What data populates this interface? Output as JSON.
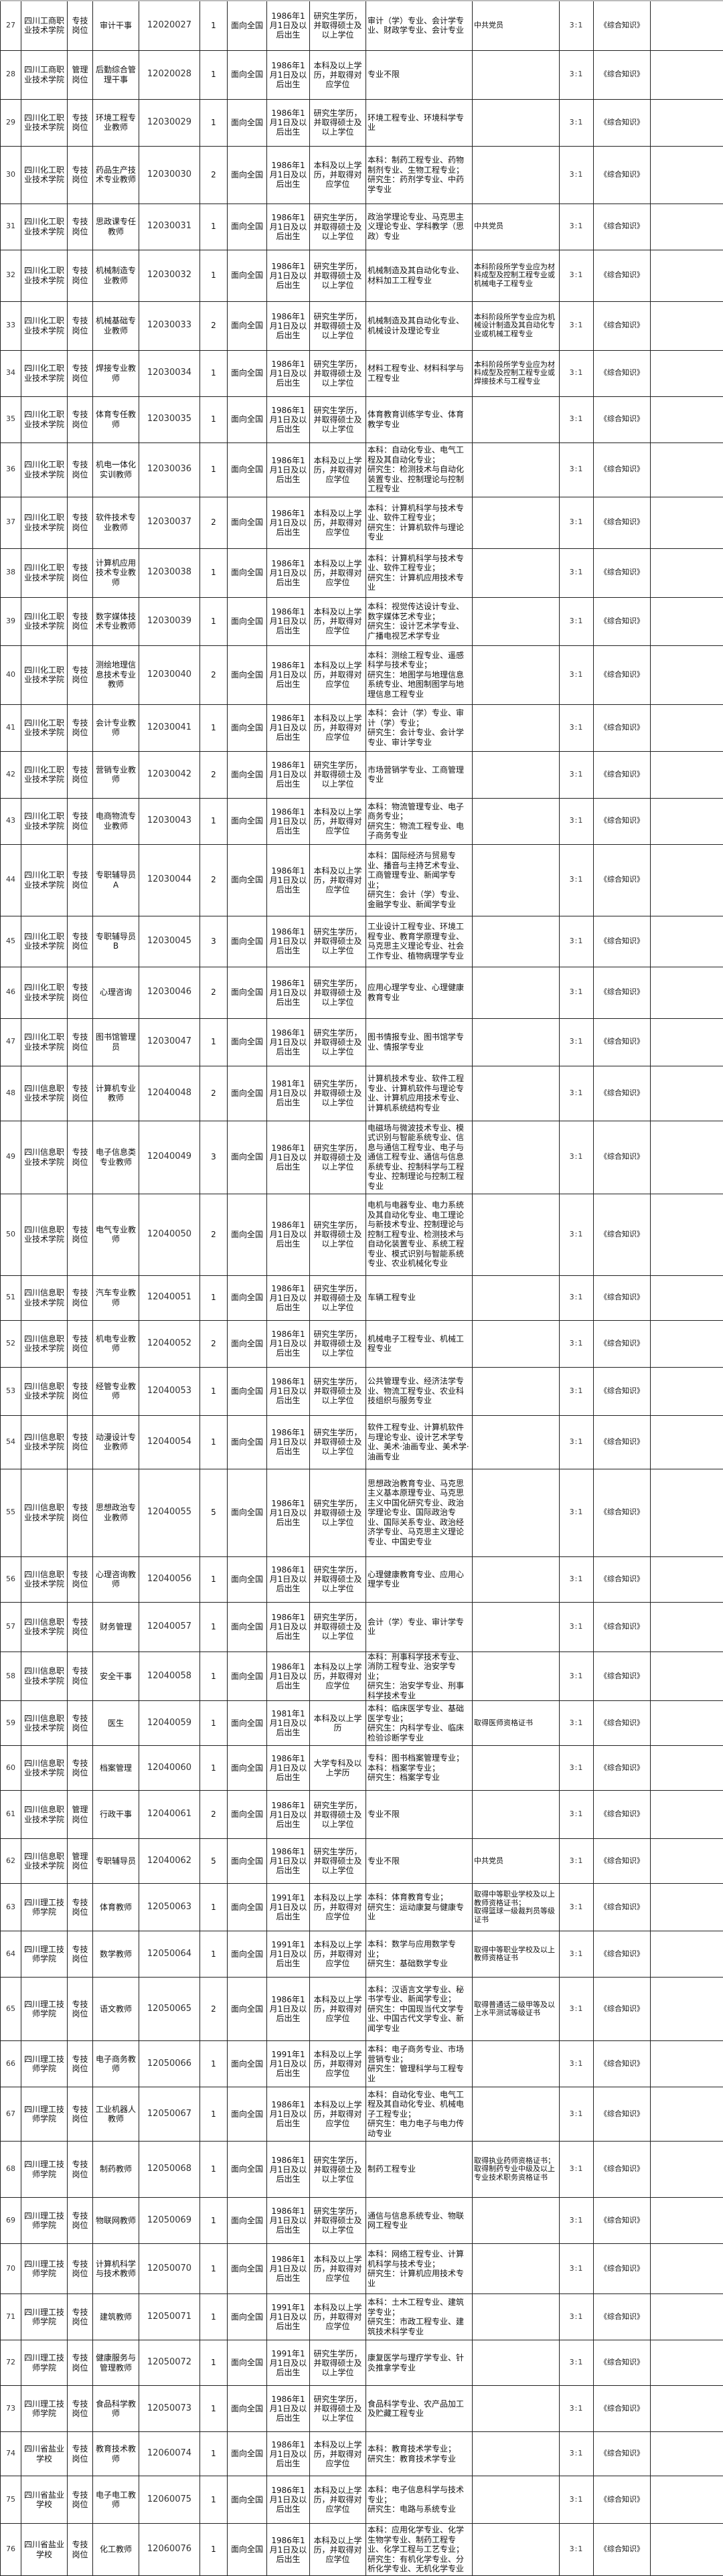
{
  "rows": [
    {
      "no": "27",
      "unit": "四川工商职业技术学院",
      "type": "专技岗位",
      "post": "审计干事",
      "code": "12020027",
      "count": "1",
      "scope": "面向全国",
      "age": "1986年1月1日及以后出生",
      "edu": "研究生学历，并取得硕士及以上学位",
      "major": "审计（学）专业、会计学专业、财政学专业、会计专业",
      "other": "中共党员",
      "ratio": "3:1",
      "exam": "《综合知识》"
    },
    {
      "no": "28",
      "unit": "四川工商职业技术学院",
      "type": "管理岗位",
      "post": "后勤综合管理干事",
      "code": "12020028",
      "count": "1",
      "scope": "面向全国",
      "age": "1986年1月1日及以后出生",
      "edu": "本科及以上学历，并取得对应学位",
      "major": "专业不限",
      "other": "",
      "ratio": "3:1",
      "exam": "《综合知识》"
    },
    {
      "no": "29",
      "unit": "四川化工职业技术学院",
      "type": "专技岗位",
      "post": "环境工程专业教师",
      "code": "12030029",
      "count": "1",
      "scope": "面向全国",
      "age": "1986年1月1日及以后出生",
      "edu": "研究生学历，并取得硕士及以上学位",
      "major": "环境工程专业、环境科学专业",
      "other": "",
      "ratio": "3:1",
      "exam": "《综合知识》"
    },
    {
      "no": "30",
      "unit": "四川化工职业技术学院",
      "type": "专技岗位",
      "post": "药品生产技术专业教师",
      "code": "12030030",
      "count": "2",
      "scope": "面向全国",
      "age": "1986年1月1日及以后出生",
      "edu": "本科及以上学历，并取得对应学位",
      "major": "本科：制药工程专业、药物制剂专业、生物工程专业；\n研究生：药剂学专业、中药学专业",
      "other": "",
      "ratio": "3:1",
      "exam": "《综合知识》"
    },
    {
      "no": "31",
      "unit": "四川化工职业技术学院",
      "type": "专技岗位",
      "post": "思政课专任教师",
      "code": "12030031",
      "count": "1",
      "scope": "面向全国",
      "age": "1986年1月1日及以后出生",
      "edu": "研究生学历，并取得硕士及以上学位",
      "major": "政治学理论专业、马克思主义理论专业、学科教学（思政）专业",
      "other": "中共党员",
      "ratio": "3:1",
      "exam": "《综合知识》"
    },
    {
      "no": "32",
      "unit": "四川化工职业技术学院",
      "type": "专技岗位",
      "post": "机械制造专业教师",
      "code": "12030032",
      "count": "1",
      "scope": "面向全国",
      "age": "1986年1月1日及以后出生",
      "edu": "研究生学历，并取得硕士及以上学位",
      "major": "机械制造及其自动化专业、材料加工工程专业",
      "other": "本科阶段所学专业应为材料成型及控制工程专业或机械电子工程专业",
      "ratio": "3:1",
      "exam": "《综合知识》"
    },
    {
      "no": "33",
      "unit": "四川化工职业技术学院",
      "type": "专技岗位",
      "post": "机械基础专业教师",
      "code": "12030033",
      "count": "2",
      "scope": "面向全国",
      "age": "1986年1月1日及以后出生",
      "edu": "研究生学历，并取得硕士及以上学位",
      "major": "机械制造及其自动化专业、机械设计及理论专业",
      "other": "本科阶段所学专业应为机械设计制造及其自动化专业或机械工程专业",
      "ratio": "3:1",
      "exam": "《综合知识》"
    },
    {
      "no": "34",
      "unit": "四川化工职业技术学院",
      "type": "专技岗位",
      "post": "焊接专业教师",
      "code": "12030034",
      "count": "1",
      "scope": "面向全国",
      "age": "1986年1月1日及以后出生",
      "edu": "研究生学历，并取得硕士及以上学位",
      "major": "材料工程专业、材料科学与工程专业",
      "other": "本科阶段所学专业应为材料成型及控制工程专业或焊接技术与工程专业",
      "ratio": "3:1",
      "exam": "《综合知识》"
    },
    {
      "no": "35",
      "unit": "四川化工职业技术学院",
      "type": "专技岗位",
      "post": "体育专任教师",
      "code": "12030035",
      "count": "1",
      "scope": "面向全国",
      "age": "1986年1月1日及以后出生",
      "edu": "研究生学历，并取得硕士及以上学位",
      "major": "体育教育训练学专业、体育教学专业",
      "other": "",
      "ratio": "3:1",
      "exam": "《综合知识》"
    },
    {
      "no": "36",
      "unit": "四川化工职业技术学院",
      "type": "专技岗位",
      "post": "机电一体化实训教师",
      "code": "12030036",
      "count": "1",
      "scope": "面向全国",
      "age": "1986年1月1日及以后出生",
      "edu": "本科及以上学历，并取得对应学位",
      "major": "本科：自动化专业、电气工程及其自动化专业；\n研究生：检测技术与自动化装置专业、控制理论与控制工程专业",
      "other": "",
      "ratio": "3:1",
      "exam": "《综合知识》"
    },
    {
      "no": "37",
      "unit": "四川化工职业技术学院",
      "type": "专技岗位",
      "post": "软件技术专业教师",
      "code": "12030037",
      "count": "2",
      "scope": "面向全国",
      "age": "1986年1月1日及以后出生",
      "edu": "本科及以上学历，并取得对应学位",
      "major": "本科：计算机科学与技术专业、软件工程专业；\n研究生：计算机软件与理论专业",
      "other": "",
      "ratio": "3:1",
      "exam": "《综合知识》"
    },
    {
      "no": "38",
      "unit": "四川化工职业技术学院",
      "type": "专技岗位",
      "post": "计算机应用技术专业教师",
      "code": "12030038",
      "count": "1",
      "scope": "面向全国",
      "age": "1986年1月1日及以后出生",
      "edu": "本科及以上学历，并取得对应学位",
      "major": "本科：计算机科学与技术专业、软件工程专业；\n研究生：计算机应用技术专业",
      "other": "",
      "ratio": "3:1",
      "exam": "《综合知识》"
    },
    {
      "no": "39",
      "unit": "四川化工职业技术学院",
      "type": "专技岗位",
      "post": "数字媒体技术专业教师",
      "code": "12030039",
      "count": "1",
      "scope": "面向全国",
      "age": "1986年1月1日及以后出生",
      "edu": "本科及以上学历，并取得对应学位",
      "major": "本科：视觉传达设计专业、数字媒体艺术专业；\n研究生：设计艺术学专业、广播电视艺术学专业",
      "other": "",
      "ratio": "3:1",
      "exam": "《综合知识》"
    },
    {
      "no": "40",
      "unit": "四川化工职业技术学院",
      "type": "专技岗位",
      "post": "测绘地理信息技术专业教师",
      "code": "12030040",
      "count": "2",
      "scope": "面向全国",
      "age": "1986年1月1日及以后出生",
      "edu": "本科及以上学历，并取得对应学位",
      "major": "本科：测绘工程专业、遥感科学与技术专业；\n研究生：地图学与地理信息系统专业、地图制图学与地理信息工程专业",
      "other": "",
      "ratio": "3:1",
      "exam": "《综合知识》"
    },
    {
      "no": "41",
      "unit": "四川化工职业技术学院",
      "type": "专技岗位",
      "post": "会计专业教师",
      "code": "12030041",
      "count": "1",
      "scope": "面向全国",
      "age": "1986年1月1日及以后出生",
      "edu": "本科及以上学历，并取得对应学位",
      "major": "本科：会计（学）专业、审计（学）专业；\n研究生：会计专业、会计学专业、审计学专业",
      "other": "",
      "ratio": "3:1",
      "exam": "《综合知识》"
    },
    {
      "no": "42",
      "unit": "四川化工职业技术学院",
      "type": "专技岗位",
      "post": "营销专业教师",
      "code": "12030042",
      "count": "2",
      "scope": "面向全国",
      "age": "1986年1月1日及以后出生",
      "edu": "研究生学历，并取得硕士及以上学位",
      "major": "市场营销学专业、工商管理专业",
      "other": "",
      "ratio": "3:1",
      "exam": "《综合知识》"
    },
    {
      "no": "43",
      "unit": "四川化工职业技术学院",
      "type": "专技岗位",
      "post": "电商物流专业教师",
      "code": "12030043",
      "count": "1",
      "scope": "面向全国",
      "age": "1986年1月1日及以后出生",
      "edu": "本科及以上学历，并取得对应学位",
      "major": "本科：物流管理专业、电子商务专业；\n研究生：物流工程专业、电子商务专业",
      "other": "",
      "ratio": "3:1",
      "exam": "《综合知识》"
    },
    {
      "no": "44",
      "unit": "四川化工职业技术学院",
      "type": "专技岗位",
      "post": "专职辅导员A",
      "code": "12030044",
      "count": "2",
      "scope": "面向全国",
      "age": "1986年1月1日及以后出生",
      "edu": "本科及以上学历，并取得对应学位",
      "major": "本科：国际经济与贸易专业、播音与主持艺术专业、工商管理专业、新闻学专业；\n研究生：会计（学）专业、金融学专业、新闻学专业",
      "other": "",
      "ratio": "3:1",
      "exam": "《综合知识》"
    },
    {
      "no": "45",
      "unit": "四川化工职业技术学院",
      "type": "专技岗位",
      "post": "专职辅导员B",
      "code": "12030045",
      "count": "3",
      "scope": "面向全国",
      "age": "1986年1月1日及以后出生",
      "edu": "研究生学历，并取得硕士及以上学位",
      "major": "工业设计工程专业、环境工程专业、教育学原理专业、马克思主义理论专业、社会工作专业、植物病理学专业",
      "other": "",
      "ratio": "3:1",
      "exam": "《综合知识》"
    },
    {
      "no": "46",
      "unit": "四川化工职业技术学院",
      "type": "专技岗位",
      "post": "心理咨询",
      "code": "12030046",
      "count": "2",
      "scope": "面向全国",
      "age": "1986年1月1日及以后出生",
      "edu": "研究生学历，并取得硕士及以上学位",
      "major": "应用心理学专业、心理健康教育专业",
      "other": "",
      "ratio": "3:1",
      "exam": "《综合知识》"
    },
    {
      "no": "47",
      "unit": "四川化工职业技术学院",
      "type": "专技岗位",
      "post": "图书馆管理员",
      "code": "12030047",
      "count": "1",
      "scope": "面向全国",
      "age": "1986年1月1日及以后出生",
      "edu": "研究生学历，并取得硕士及以上学位",
      "major": "图书情报专业、图书馆学专业、情报学专业",
      "other": "",
      "ratio": "3:1",
      "exam": "《综合知识》"
    },
    {
      "no": "48",
      "unit": "四川信息职业技术学院",
      "type": "专技岗位",
      "post": "计算机专业教师",
      "code": "12040048",
      "count": "2",
      "scope": "面向全国",
      "age": "1981年1月1日及以后出生",
      "edu": "研究生学历，并取得硕士及以上学位",
      "major": "计算机技术专业、软件工程专业、计算机软件与理论专业、计算机应用技术专业、计算机系统结构专业",
      "other": "",
      "ratio": "3:1",
      "exam": "《综合知识》"
    },
    {
      "no": "49",
      "unit": "四川信息职业技术学院",
      "type": "专技岗位",
      "post": "电子信息类专业教师",
      "code": "12040049",
      "count": "3",
      "scope": "面向全国",
      "age": "1986年1月1日及以后出生",
      "edu": "研究生学历，并取得硕士及以上学位",
      "major": "电磁场与微波技术专业、模式识别与智能系统专业、信息与通信工程专业、电子与通信工程专业、通信与信息系统专业、控制科学与工程专业、控制理论与控制工程专业",
      "other": "",
      "ratio": "3:1",
      "exam": "《综合知识》"
    },
    {
      "no": "50",
      "unit": "四川信息职业技术学院",
      "type": "专技岗位",
      "post": "电气专业教师",
      "code": "12040050",
      "count": "2",
      "scope": "面向全国",
      "age": "1986年1月1日及以后出生",
      "edu": "研究生学历，并取得硕士及以上学位",
      "major": "电机与电器专业、电力系统及其自动化专业、电工理论与新技术专业、控制理论与控制工程专业、检测技术与自动化装置专业、系统工程专业、模式识别与智能系统专业、农业机械化专业",
      "other": "",
      "ratio": "3:1",
      "exam": "《综合知识》"
    },
    {
      "no": "51",
      "unit": "四川信息职业技术学院",
      "type": "专技岗位",
      "post": "汽车专业教师",
      "code": "12040051",
      "count": "1",
      "scope": "面向全国",
      "age": "1986年1月1日及以后出生",
      "edu": "研究生学历，并取得硕士及以上学位",
      "major": "车辆工程专业",
      "other": "",
      "ratio": "3:1",
      "exam": "《综合知识》"
    },
    {
      "no": "52",
      "unit": "四川信息职业技术学院",
      "type": "专技岗位",
      "post": "机电专业教师",
      "code": "12040052",
      "count": "2",
      "scope": "面向全国",
      "age": "1986年1月1日及以后出生",
      "edu": "研究生学历，并取得硕士及以上学位",
      "major": "机械电子工程专业、机械工程专业",
      "other": "",
      "ratio": "3:1",
      "exam": "《综合知识》"
    },
    {
      "no": "53",
      "unit": "四川信息职业技术学院",
      "type": "专技岗位",
      "post": "经管专业教师",
      "code": "12040053",
      "count": "1",
      "scope": "面向全国",
      "age": "1986年1月1日及以后出生",
      "edu": "研究生学历，并取得硕士及以上学位",
      "major": "公共管理专业、经济法学专业、物流工程专业、农业科技组织与服务专业",
      "other": "",
      "ratio": "3:1",
      "exam": "《综合知识》"
    },
    {
      "no": "54",
      "unit": "四川信息职业技术学院",
      "type": "专技岗位",
      "post": "动漫设计专业教师",
      "code": "12040054",
      "count": "1",
      "scope": "面向全国",
      "age": "1986年1月1日及以后出生",
      "edu": "研究生学历，并取得硕士及以上学位",
      "major": "软件工程专业、计算机软件与理论专业、设计艺术学专业、美术·油画专业、美术学·油画专业",
      "other": "",
      "ratio": "3:1",
      "exam": "《综合知识》"
    },
    {
      "no": "55",
      "unit": "四川信息职业技术学院",
      "type": "专技岗位",
      "post": "思想政治专业教师",
      "code": "12040055",
      "count": "5",
      "scope": "面向全国",
      "age": "1986年1月1日及以后出生",
      "edu": "研究生学历，并取得硕士及以上学位",
      "major": "思想政治教育专业、马克思主义基本原理专业、马克思主义中国化研究专业、政治学理论专业、国际政治专业、国际关系专业、政治经济学专业、马克思主义理论专业、中国史专业",
      "other": "",
      "ratio": "3:1",
      "exam": "《综合知识》"
    },
    {
      "no": "56",
      "unit": "四川信息职业技术学院",
      "type": "专技岗位",
      "post": "心理咨询教师",
      "code": "12040056",
      "count": "1",
      "scope": "面向全国",
      "age": "1986年1月1日及以后出生",
      "edu": "研究生学历，并取得硕士及以上学位",
      "major": "心理健康教育专业、应用心理学专业",
      "other": "",
      "ratio": "3:1",
      "exam": "《综合知识》"
    },
    {
      "no": "57",
      "unit": "四川信息职业技术学院",
      "type": "专技岗位",
      "post": "财务管理",
      "code": "12040057",
      "count": "1",
      "scope": "面向全国",
      "age": "1986年1月1日及以后出生",
      "edu": "研究生学历，并取得硕士及以上学位",
      "major": "会计（学）专业、审计学专业",
      "other": "",
      "ratio": "3:1",
      "exam": "《综合知识》"
    },
    {
      "no": "58",
      "unit": "四川信息职业技术学院",
      "type": "专技岗位",
      "post": "安全干事",
      "code": "12040058",
      "count": "1",
      "scope": "面向全国",
      "age": "1986年1月1日及以后出生",
      "edu": "本科及以上学历，并取得对应学位",
      "major": "本科：刑事科学技术专业、消防工程专业、治安学专业；\n研究生：治安学专业、刑事科学技术专业",
      "other": "",
      "ratio": "3:1",
      "exam": "《综合知识》"
    },
    {
      "no": "59",
      "unit": "四川信息职业技术学院",
      "type": "专技岗位",
      "post": "医生",
      "code": "12040059",
      "count": "1",
      "scope": "面向全国",
      "age": "1981年1月1日及以后出生",
      "edu": "本科及以上学历",
      "major": "本科：临床医学专业、基础医学专业；\n研究生：内科学专业、临床检验诊断学专业",
      "other": "取得医师资格证书",
      "ratio": "3:1",
      "exam": "《综合知识》"
    },
    {
      "no": "60",
      "unit": "四川信息职业技术学院",
      "type": "专技岗位",
      "post": "档案管理",
      "code": "12040060",
      "count": "1",
      "scope": "面向全国",
      "age": "1986年1月1日及以后出生",
      "edu": "大学专科及以上学历",
      "major": "专科：图书档案管理专业；\n本科：档案学专业；\n研究生：档案学专业",
      "other": "",
      "ratio": "3:1",
      "exam": "《综合知识》"
    },
    {
      "no": "61",
      "unit": "四川信息职业技术学院",
      "type": "管理岗位",
      "post": "行政干事",
      "code": "12040061",
      "count": "2",
      "scope": "面向全国",
      "age": "1986年1月1日及以后出生",
      "edu": "研究生学历，并取得硕士及以上学位",
      "major": "专业不限",
      "other": "",
      "ratio": "3:1",
      "exam": "《综合知识》"
    },
    {
      "no": "62",
      "unit": "四川信息职业技术学院",
      "type": "管理岗位",
      "post": "专职辅导员",
      "code": "12040062",
      "count": "5",
      "scope": "面向全国",
      "age": "1986年1月1日及以后出生",
      "edu": "研究生学历，并取得硕士及以上学位",
      "major": "专业不限",
      "other": "中共党员",
      "ratio": "3:1",
      "exam": "《综合知识》"
    },
    {
      "no": "63",
      "unit": "四川理工技师学院",
      "type": "专技岗位",
      "post": "体育教师",
      "code": "12050063",
      "count": "1",
      "scope": "面向全国",
      "age": "1991年1月1日及以后出生",
      "edu": "本科及以上学历，并取得对应学位",
      "major": "本科：体育教育专业；\n研究生：运动康复与健康专业",
      "other": "取得中等职业学校及以上教师资格证书；\n取得篮球一级裁判员等级证书",
      "ratio": "3:1",
      "exam": "《综合知识》"
    },
    {
      "no": "64",
      "unit": "四川理工技师学院",
      "type": "专技岗位",
      "post": "数学教师",
      "code": "12050064",
      "count": "1",
      "scope": "面向全国",
      "age": "1991年1月1日及以后出生",
      "edu": "本科及以上学历，并取得对应学位",
      "major": "本科：数学与应用数学专业；\n研究生：基础数学专业",
      "other": "取得中等职业学校及以上教师资格证书",
      "ratio": "3:1",
      "exam": "《综合知识》"
    },
    {
      "no": "65",
      "unit": "四川理工技师学院",
      "type": "专技岗位",
      "post": "语文教师",
      "code": "12050065",
      "count": "2",
      "scope": "面向全国",
      "age": "1986年1月1日及以后出生",
      "edu": "本科及以上学历，并取得对应学位",
      "major": "本科：汉语言文学专业、秘书学专业、新闻学专业；\n研究生：中国现当代文学专业、中国古代文学专业、新闻学专业",
      "other": "取得普通话二级甲等及以上水平测试等级证书",
      "ratio": "3:1",
      "exam": "《综合知识》"
    },
    {
      "no": "66",
      "unit": "四川理工技师学院",
      "type": "专技岗位",
      "post": "电子商务教师",
      "code": "12050066",
      "count": "1",
      "scope": "面向全国",
      "age": "1991年1月1日及以后出生",
      "edu": "本科及以上学历，并取得对应学位",
      "major": "本科：电子商务专业、市场营销专业；\n研究生：管理科学与工程专业",
      "other": "",
      "ratio": "3:1",
      "exam": "《综合知识》"
    },
    {
      "no": "67",
      "unit": "四川理工技师学院",
      "type": "专技岗位",
      "post": "工业机器人教师",
      "code": "12050067",
      "count": "1",
      "scope": "面向全国",
      "age": "1986年1月1日及以后出生",
      "edu": "本科及以上学历，并取得对应学位",
      "major": "本科：自动化专业、电气工程及其自动化专业、机械电子工程专业；\n研究生：电力电子与电力传动专业",
      "other": "",
      "ratio": "3:1",
      "exam": "《综合知识》"
    },
    {
      "no": "68",
      "unit": "四川理工技师学院",
      "type": "专技岗位",
      "post": "制药教师",
      "code": "12050068",
      "count": "1",
      "scope": "面向全国",
      "age": "1986年1月1日及以后出生",
      "edu": "研究生学历，并取得硕士及以上学位",
      "major": "制药工程专业",
      "other": "取得执业药师资格证书；\n取得制药专业中级及以上专业技术职务资格证书",
      "ratio": "3:1",
      "exam": "《综合知识》"
    },
    {
      "no": "69",
      "unit": "四川理工技师学院",
      "type": "专技岗位",
      "post": "物联网教师",
      "code": "12050069",
      "count": "1",
      "scope": "面向全国",
      "age": "1986年1月1日及以后出生",
      "edu": "研究生学历，并取得硕士及以上学位",
      "major": "通信与信息系统专业、物联网工程专业",
      "other": "",
      "ratio": "3:1",
      "exam": "《综合知识》"
    },
    {
      "no": "70",
      "unit": "四川理工技师学院",
      "type": "专技岗位",
      "post": "计算机科学与技术教师",
      "code": "12050070",
      "count": "1",
      "scope": "面向全国",
      "age": "1986年1月1日及以后出生",
      "edu": "本科及以上学历，并取得对应学位",
      "major": "本科：网络工程专业、计算机科学与技术专业；\n研究生：计算机应用技术专业",
      "other": "",
      "ratio": "3:1",
      "exam": "《综合知识》"
    },
    {
      "no": "71",
      "unit": "四川理工技师学院",
      "type": "专技岗位",
      "post": "建筑教师",
      "code": "12050071",
      "count": "1",
      "scope": "面向全国",
      "age": "1991年1月1日及以后出生",
      "edu": "本科及以上学历，并取得对应学位",
      "major": "本科：土木工程专业、建筑学专业；\n研究生：市政工程专业、建筑技术科学专业",
      "other": "",
      "ratio": "3:1",
      "exam": "《综合知识》"
    },
    {
      "no": "72",
      "unit": "四川理工技师学院",
      "type": "专技岗位",
      "post": "健康服务与管理教师",
      "code": "12050072",
      "count": "1",
      "scope": "面向全国",
      "age": "1991年1月1日及以后出生",
      "edu": "研究生学历，并取得硕士及以上学位",
      "major": "康复医学与理疗学专业、针灸推拿学专业",
      "other": "",
      "ratio": "3:1",
      "exam": "《综合知识》"
    },
    {
      "no": "73",
      "unit": "四川理工技师学院",
      "type": "专技岗位",
      "post": "食品科学教师",
      "code": "12050073",
      "count": "1",
      "scope": "面向全国",
      "age": "1986年1月1日及以后出生",
      "edu": "研究生学历，并取得硕士及以上学位",
      "major": "食品科学专业、农产品加工及贮藏工程专业",
      "other": "",
      "ratio": "3:1",
      "exam": "《综合知识》"
    },
    {
      "no": "74",
      "unit": "四川省盐业学校",
      "type": "专技岗位",
      "post": "教育技术教师",
      "code": "12060074",
      "count": "1",
      "scope": "面向全国",
      "age": "1986年1月1日及以后出生",
      "edu": "本科及以上学历，并取得对应学位",
      "major": "本科：教育技术学专业；\n研究生：教育技术学专业",
      "other": "",
      "ratio": "3:1",
      "exam": "《综合知识》"
    },
    {
      "no": "75",
      "unit": "四川省盐业学校",
      "type": "专技岗位",
      "post": "电子电工教师",
      "code": "12060075",
      "count": "1",
      "scope": "面向全国",
      "age": "1986年1月1日及以后出生",
      "edu": "本科及以上学历，并取得对应学位",
      "major": "本科：电子信息科学与技术专业；\n研究生：电路与系统专业",
      "other": "",
      "ratio": "3:1",
      "exam": "《综合知识》"
    },
    {
      "no": "76",
      "unit": "四川省盐业学校",
      "type": "专技岗位",
      "post": "化工教师",
      "code": "12060076",
      "count": "1",
      "scope": "面向全国",
      "age": "1986年1月1日及以后出生",
      "edu": "本科及以上学历，并取得对应学位",
      "major": "本科：应用化学专业、化学生物学专业、制药工程专业、化学工程与工艺专业；\n研究生：有机化学专业、分析化学专业、无机化学专业",
      "other": "",
      "ratio": "3:1",
      "exam": "《综合知识》"
    }
  ]
}
